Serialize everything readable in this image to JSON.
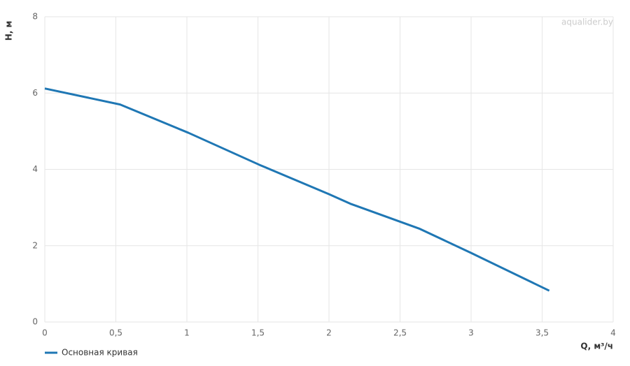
{
  "chart_data": {
    "type": "line",
    "x_label": "Q, м³/ч",
    "y_label": "H, м",
    "watermark": "aqualider.by",
    "xlim": [
      0,
      4
    ],
    "ylim": [
      0,
      8
    ],
    "xticks": [
      0,
      {
        "value": 0.5,
        "label": "0,5"
      },
      1,
      {
        "value": 1.5,
        "label": "1,5"
      },
      2,
      {
        "value": 2.5,
        "label": "2,5"
      },
      3,
      {
        "value": 3.5,
        "label": "3,5"
      },
      4
    ],
    "yticks": [
      0,
      2,
      4,
      6,
      8
    ],
    "grid": true,
    "legend": "bottom-left",
    "series": [
      {
        "name": "Основная кривая",
        "color": "#1f77b4",
        "x": [
          0,
          0.53,
          1.01,
          1.51,
          2.0,
          2.15,
          2.64,
          3.0,
          3.55
        ],
        "values": [
          6.12,
          5.7,
          4.96,
          4.12,
          3.35,
          3.1,
          2.44,
          1.81,
          0.82
        ]
      }
    ]
  }
}
